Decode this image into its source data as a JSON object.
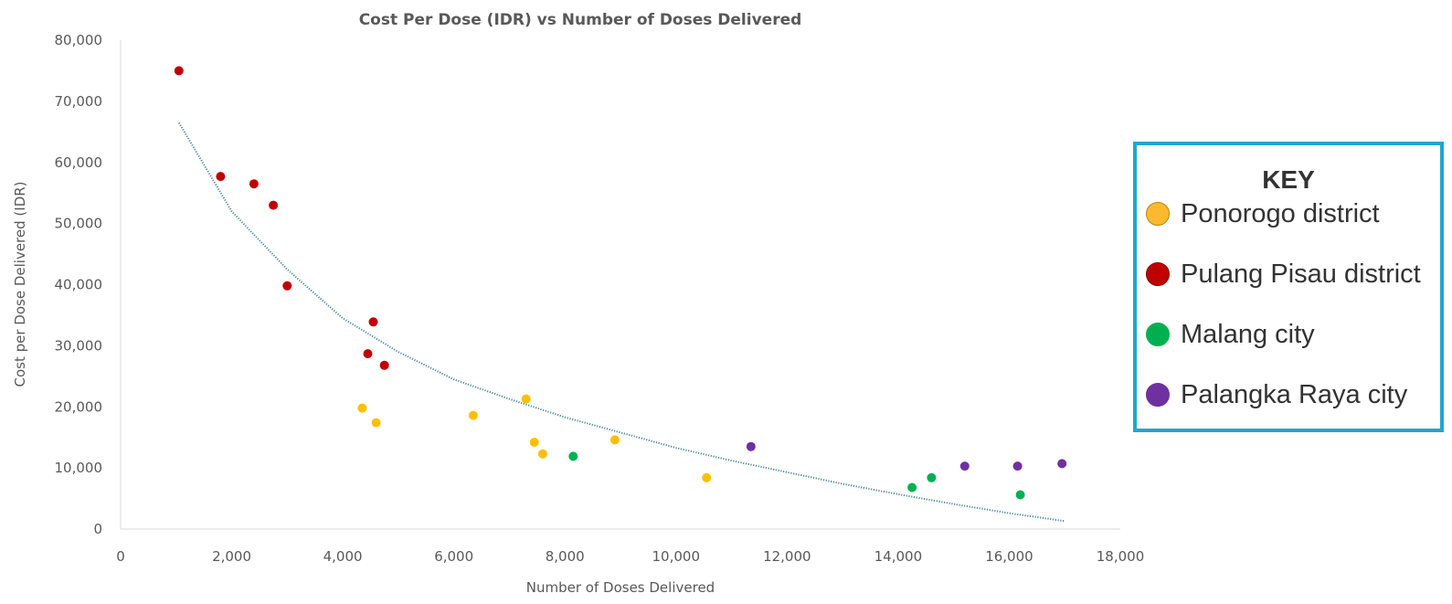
{
  "chart_data": {
    "type": "scatter",
    "title": "Cost Per Dose (IDR) vs Number of Doses Delivered",
    "xlabel": "Number of Doses Delivered",
    "ylabel": "Cost per Dose Delivered (IDR)",
    "xlim": [
      0,
      18000
    ],
    "ylim": [
      0,
      80000
    ],
    "xticks": [
      0,
      2000,
      4000,
      6000,
      8000,
      10000,
      12000,
      14000,
      16000,
      18000
    ],
    "yticks": [
      0,
      10000,
      20000,
      30000,
      40000,
      50000,
      60000,
      70000,
      80000
    ],
    "grid": false,
    "legend_position": "right",
    "trendline": {
      "type": "logarithmic",
      "style": "dotted",
      "color": "#4a8a9c",
      "points": [
        [
          1050,
          66500
        ],
        [
          2000,
          52000
        ],
        [
          3000,
          42500
        ],
        [
          4000,
          34500
        ],
        [
          5000,
          29000
        ],
        [
          6000,
          24500
        ],
        [
          7000,
          21300
        ],
        [
          8000,
          18300
        ],
        [
          9000,
          15800
        ],
        [
          10000,
          13300
        ],
        [
          11000,
          11200
        ],
        [
          12000,
          9300
        ],
        [
          13000,
          7400
        ],
        [
          14000,
          5700
        ],
        [
          15000,
          4100
        ],
        [
          16000,
          2600
        ],
        [
          17000,
          1300
        ]
      ]
    },
    "series": [
      {
        "name": "Ponorogo district",
        "color": "#ffbf00",
        "points": [
          [
            4350,
            19800
          ],
          [
            4600,
            17400
          ],
          [
            6350,
            18600
          ],
          [
            7300,
            21300
          ],
          [
            7450,
            14200
          ],
          [
            7600,
            12300
          ],
          [
            8900,
            14600
          ],
          [
            10550,
            8400
          ]
        ]
      },
      {
        "name": "Pulang Pisau district",
        "color": "#c00000",
        "points": [
          [
            1050,
            75000
          ],
          [
            1800,
            57700
          ],
          [
            2400,
            56500
          ],
          [
            2750,
            53000
          ],
          [
            3000,
            39800
          ],
          [
            4450,
            28700
          ],
          [
            4550,
            33900
          ],
          [
            4750,
            26800
          ]
        ]
      },
      {
        "name": "Malang city",
        "color": "#00b050",
        "points": [
          [
            8150,
            11900
          ],
          [
            14250,
            6800
          ],
          [
            14600,
            8400
          ],
          [
            16200,
            5600
          ]
        ]
      },
      {
        "name": "Palangka Raya city",
        "color": "#7030a0",
        "points": [
          [
            11350,
            13500
          ],
          [
            15200,
            10300
          ],
          [
            16150,
            10300
          ],
          [
            16950,
            10700
          ]
        ]
      }
    ]
  },
  "legend": {
    "title": "KEY",
    "items": [
      {
        "label": "Ponorogo district",
        "color": "#fdb92e",
        "outline": "#b8860b"
      },
      {
        "label": "Pulang Pisau district",
        "color": "#c00000",
        "outline": "#8b0000"
      },
      {
        "label": "Malang city",
        "color": "#00b050",
        "outline": "#00b050"
      },
      {
        "label": "Palangka Raya city",
        "color": "#7030a0",
        "outline": "#7030a0"
      }
    ]
  }
}
